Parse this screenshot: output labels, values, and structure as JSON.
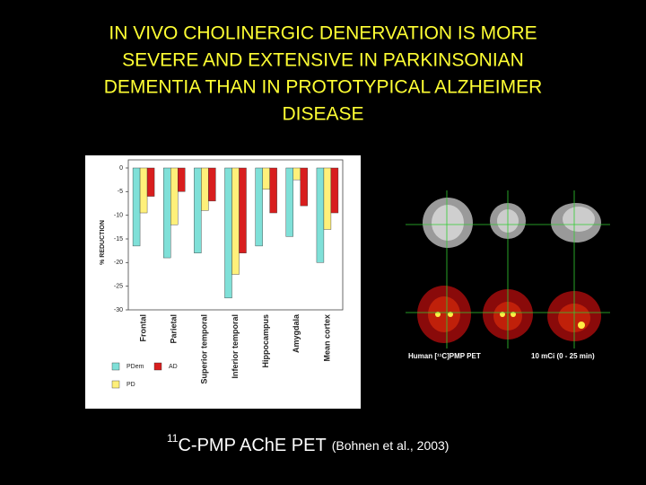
{
  "title_lines": [
    "IN VIVO CHOLINERGIC DENERVATION IS MORE",
    "SEVERE AND  EXTENSIVE IN PARKINSONIAN",
    "DEMENTIA THAN IN PROTOTYPICAL ALZHEIMER",
    "DISEASE"
  ],
  "chart_data": {
    "type": "bar",
    "y_label": "% REDUCTION",
    "categories": [
      "Frontal",
      "Parietal",
      "Superior temporal",
      "Inferior temporal",
      "Hippocampus",
      "Amygdala",
      "Mean cortex"
    ],
    "series": [
      {
        "name": "PDem",
        "color": "#7fe0d8",
        "values": [
          -16.5,
          -19,
          -18,
          -27.5,
          -16.5,
          -14.5,
          -20
        ]
      },
      {
        "name": "PD",
        "color": "#fff07a",
        "values": [
          -9.5,
          -12,
          -9,
          -22.5,
          -4.5,
          -2.5,
          -13
        ]
      },
      {
        "name": "AD",
        "color": "#d81e1e",
        "values": [
          -6,
          -5,
          -7,
          -18,
          -9.5,
          -8,
          -9.5
        ]
      }
    ],
    "ylim": [
      -30,
      0
    ],
    "yticks": [
      0,
      -5,
      -10,
      -15,
      -20,
      -25,
      -30
    ]
  },
  "image_labels": [
    "Human [¹¹C]PMP PET",
    "10 mCi (0 - 25 min)"
  ],
  "caption": {
    "superscript": "11",
    "main": "C-PMP AChE PET",
    "citation": "(Bohnen et al., 2003)"
  }
}
